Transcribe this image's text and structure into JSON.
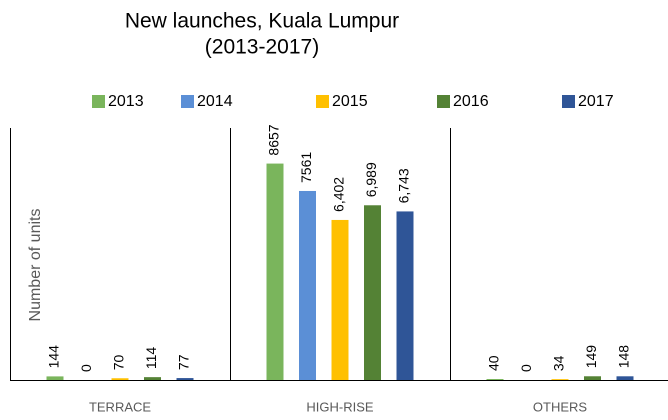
{
  "chart_data": {
    "type": "bar",
    "title": [
      "New launches, Kuala Lumpur",
      "(2013-2017)"
    ],
    "y_label": "Number of units",
    "categories": [
      "TERRACE",
      "HIGH-RISE",
      "OTHERS"
    ],
    "series": [
      {
        "name": "2013",
        "color": "#7ab55c",
        "values": [
          144,
          8657,
          40
        ]
      },
      {
        "name": "2014",
        "color": "#5b8fd6",
        "values": [
          0,
          7561,
          0
        ]
      },
      {
        "name": "2015",
        "color": "#ffc000",
        "values": [
          70,
          6402,
          34
        ],
        "value_labels": [
          "70",
          "6,402",
          "34"
        ]
      },
      {
        "name": "2016",
        "color": "#548235",
        "values": [
          114,
          6989,
          149
        ],
        "value_labels": [
          "114",
          "6,989",
          "149"
        ]
      },
      {
        "name": "2017",
        "color": "#2f5597",
        "values": [
          77,
          6743,
          148
        ],
        "value_labels": [
          "77",
          "6,743",
          "148"
        ]
      }
    ],
    "ylim": [
      0,
      10000
    ],
    "legend": "top"
  }
}
